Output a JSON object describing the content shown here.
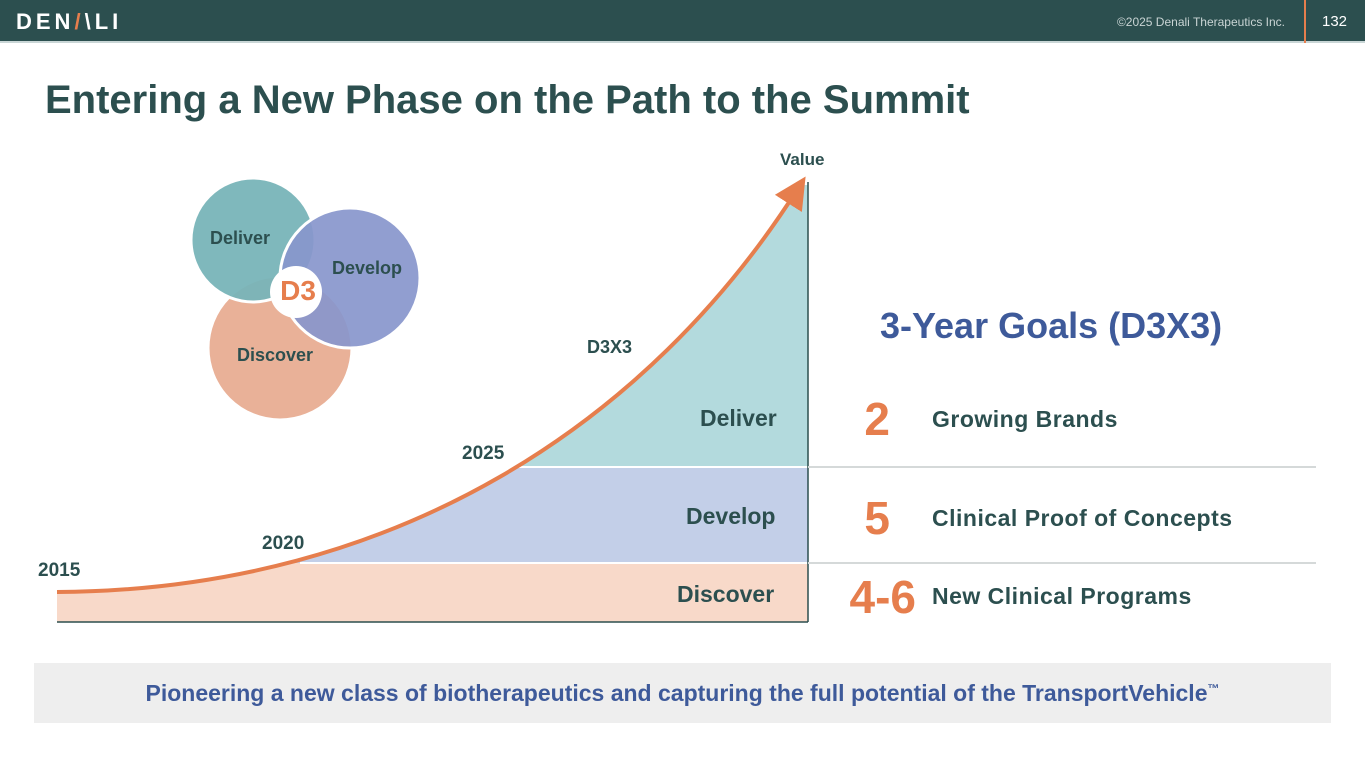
{
  "header": {
    "logo": "DENALI",
    "copyright": "©2025 Denali Therapeutics Inc.",
    "page_number": "132"
  },
  "title": "Entering a New Phase on the Path to the Summit",
  "venn": {
    "center": "D3",
    "circles": [
      "Deliver",
      "Develop",
      "Discover"
    ],
    "colors": {
      "deliver": "#78b4b8",
      "develop": "#8896cc",
      "discover": "#e9b198",
      "center_text": "#e67e4d"
    }
  },
  "chart": {
    "y_axis_label": "Value",
    "curve_label": "D3X3",
    "years": [
      "2015",
      "2020",
      "2025"
    ],
    "bands": [
      "Deliver",
      "Develop",
      "Discover"
    ],
    "colors": {
      "deliver": "#b3dadd",
      "develop": "#c3cfe8",
      "discover": "#f8d9c9",
      "curve": "#e67e4d"
    }
  },
  "goals": {
    "title": "3-Year Goals (D3X3)",
    "items": [
      {
        "number": "2",
        "label": "Growing Brands"
      },
      {
        "number": "5",
        "label": "Clinical Proof of Concepts"
      },
      {
        "number": "4-6",
        "label": "New Clinical Programs"
      }
    ]
  },
  "banner": {
    "text": "Pioneering a new class of biotherapeutics and capturing the full potential of the TransportVehicle",
    "mark": "™"
  }
}
